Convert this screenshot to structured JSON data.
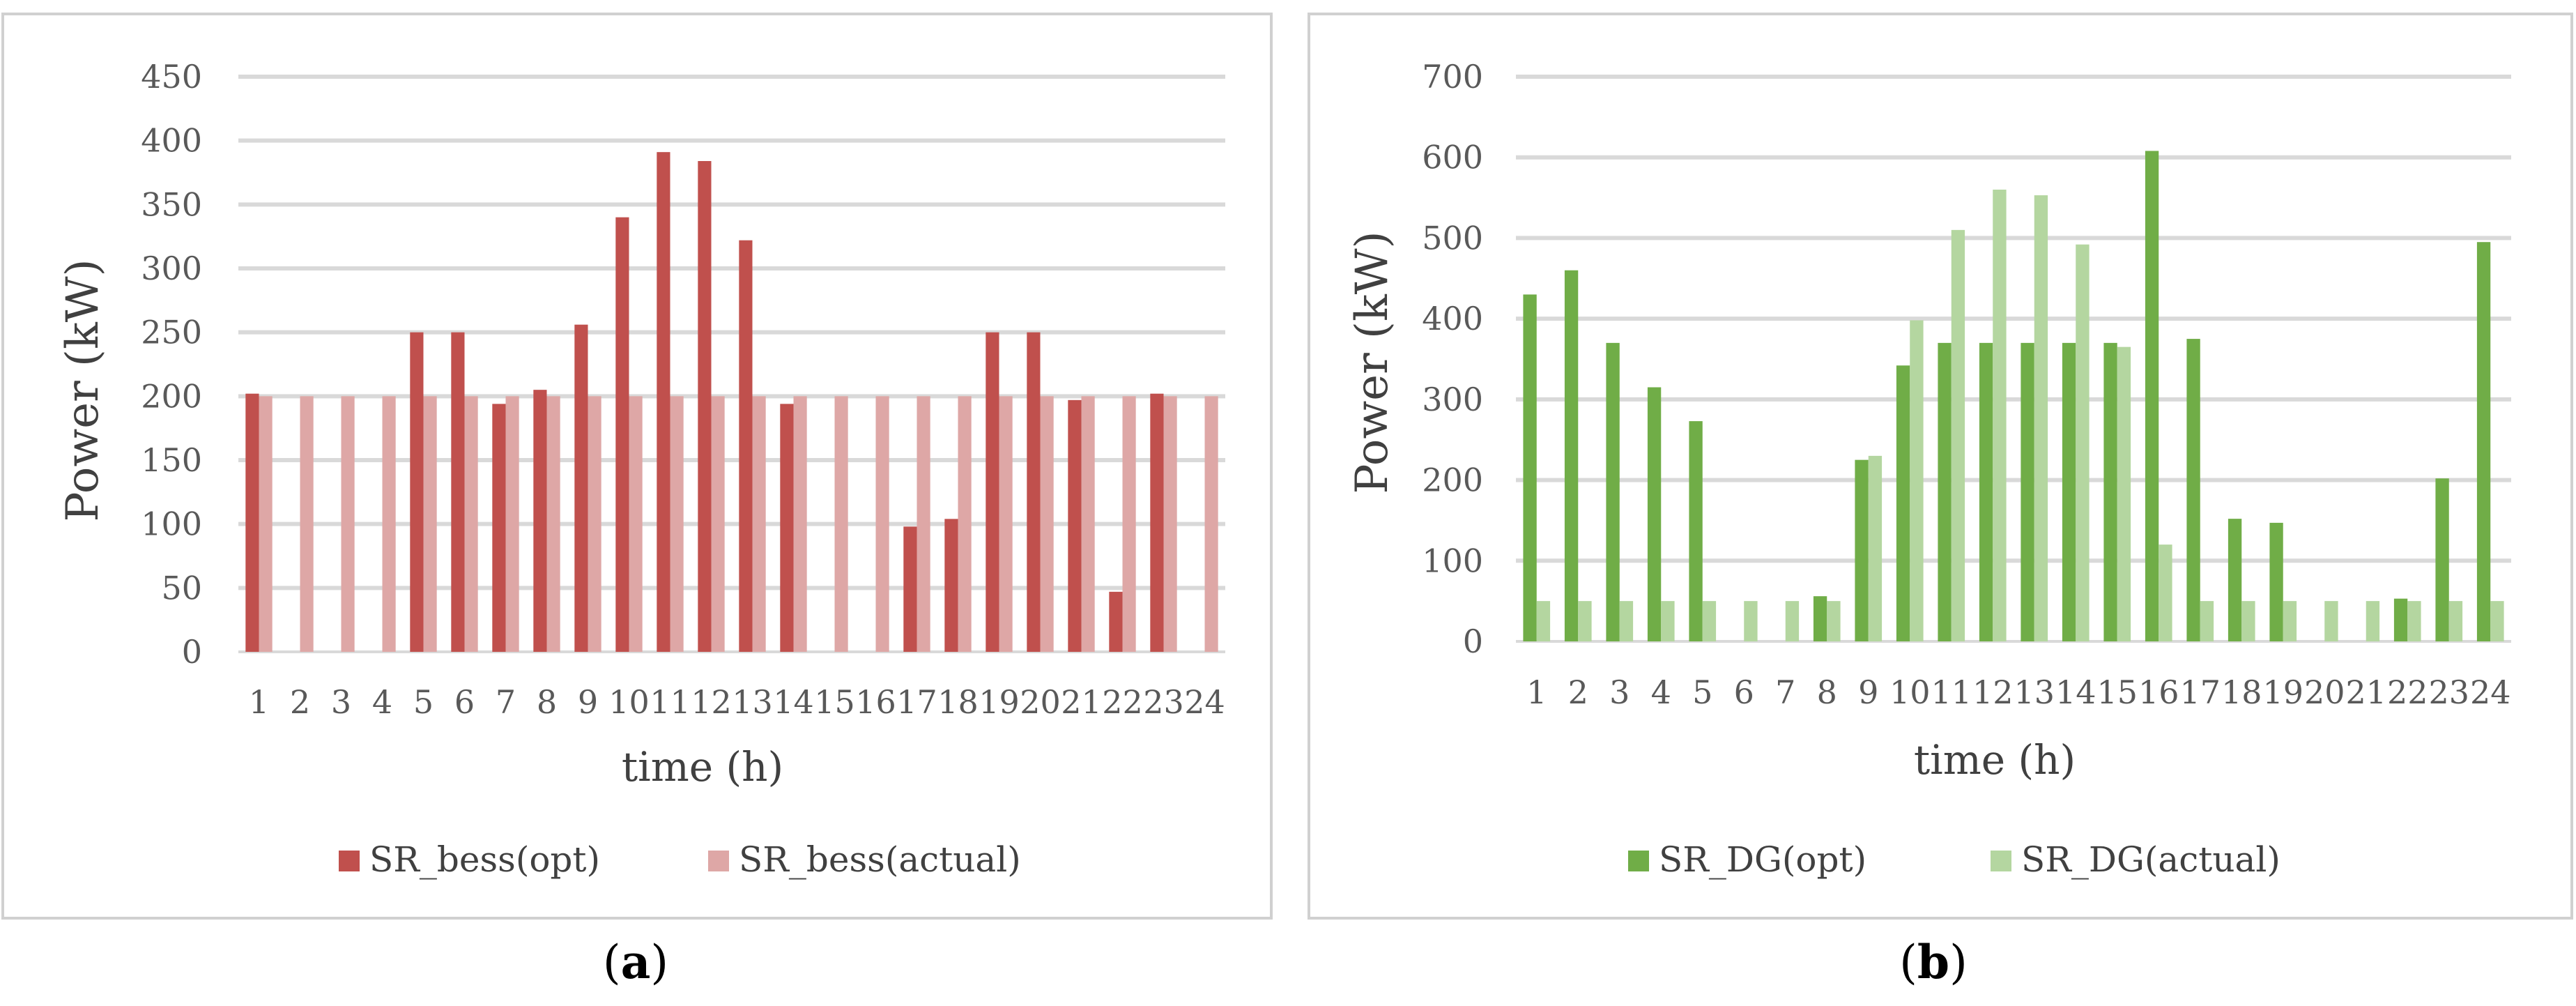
{
  "chart_data": [
    {
      "type": "bar",
      "panel_label": "a",
      "xlabel": "time (h)",
      "ylabel": "Power (kW)",
      "ylim": [
        0,
        450
      ],
      "yticks": [
        0,
        50,
        100,
        150,
        200,
        250,
        300,
        350,
        400,
        450
      ],
      "categories": [
        "1",
        "2",
        "3",
        "4",
        "5",
        "6",
        "7",
        "8",
        "9",
        "10",
        "11",
        "12",
        "13",
        "14",
        "15",
        "16",
        "17",
        "18",
        "19",
        "20",
        "21",
        "22",
        "23",
        "24"
      ],
      "grid": true,
      "legend_position": "bottom",
      "series": [
        {
          "name": "SR_bess(opt)",
          "color": "#c0504d",
          "values": [
            202,
            0,
            0,
            0,
            250,
            250,
            194,
            205,
            256,
            340,
            391,
            384,
            322,
            194,
            0,
            0,
            98,
            104,
            250,
            250,
            197,
            47,
            202,
            0
          ]
        },
        {
          "name": "SR_bess(actual)",
          "color": "#dea7a6",
          "values": [
            200,
            200,
            200,
            200,
            200,
            200,
            200,
            200,
            200,
            200,
            200,
            200,
            200,
            200,
            200,
            200,
            200,
            200,
            200,
            200,
            200,
            200,
            200,
            200
          ]
        }
      ]
    },
    {
      "type": "bar",
      "panel_label": "b",
      "xlabel": "time (h)",
      "ylabel": "Power (kW)",
      "ylim": [
        0,
        700
      ],
      "yticks": [
        0,
        100,
        200,
        300,
        400,
        500,
        600,
        700
      ],
      "categories": [
        "1",
        "2",
        "3",
        "4",
        "5",
        "6",
        "7",
        "8",
        "9",
        "10",
        "11",
        "12",
        "13",
        "14",
        "15",
        "16",
        "17",
        "18",
        "19",
        "20",
        "21",
        "22",
        "23",
        "24"
      ],
      "grid": true,
      "legend_position": "bottom",
      "series": [
        {
          "name": "SR_DG(opt)",
          "color": "#70ad47",
          "values": [
            430,
            460,
            370,
            315,
            273,
            0,
            0,
            56,
            225,
            342,
            370,
            370,
            370,
            370,
            370,
            608,
            375,
            152,
            147,
            0,
            0,
            53,
            202,
            495
          ]
        },
        {
          "name": "SR_DG(actual)",
          "color": "#b4d6a0",
          "values": [
            50,
            50,
            50,
            50,
            50,
            50,
            50,
            50,
            230,
            398,
            510,
            560,
            553,
            492,
            365,
            120,
            50,
            50,
            50,
            50,
            50,
            50,
            50,
            50
          ]
        }
      ]
    }
  ]
}
